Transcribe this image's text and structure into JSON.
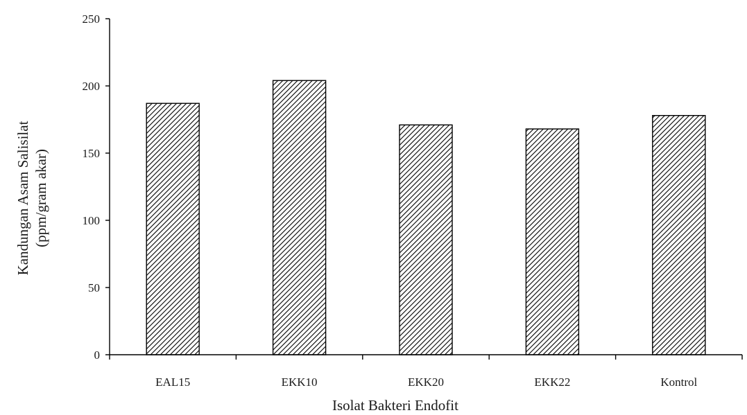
{
  "chart_data": {
    "type": "bar",
    "categories": [
      "EAL15",
      "EKK10",
      "EKK20",
      "EKK22",
      "Kontrol"
    ],
    "values": [
      187,
      204,
      171,
      168,
      178
    ],
    "xlabel": "Isolat Bakteri Endofit",
    "ylabel_line1": "Kandungan Asam Salisilat",
    "ylabel_line2": "(ppm/gram akar)",
    "ylim": [
      0,
      250
    ],
    "yticks": [
      0,
      50,
      100,
      150,
      200,
      250
    ],
    "grid": false,
    "legend": "none",
    "bar_fill": "diagonal-hatch",
    "colors": {
      "bar_stroke": "#000000",
      "hatch": "#000000",
      "axis": "#000000"
    }
  }
}
